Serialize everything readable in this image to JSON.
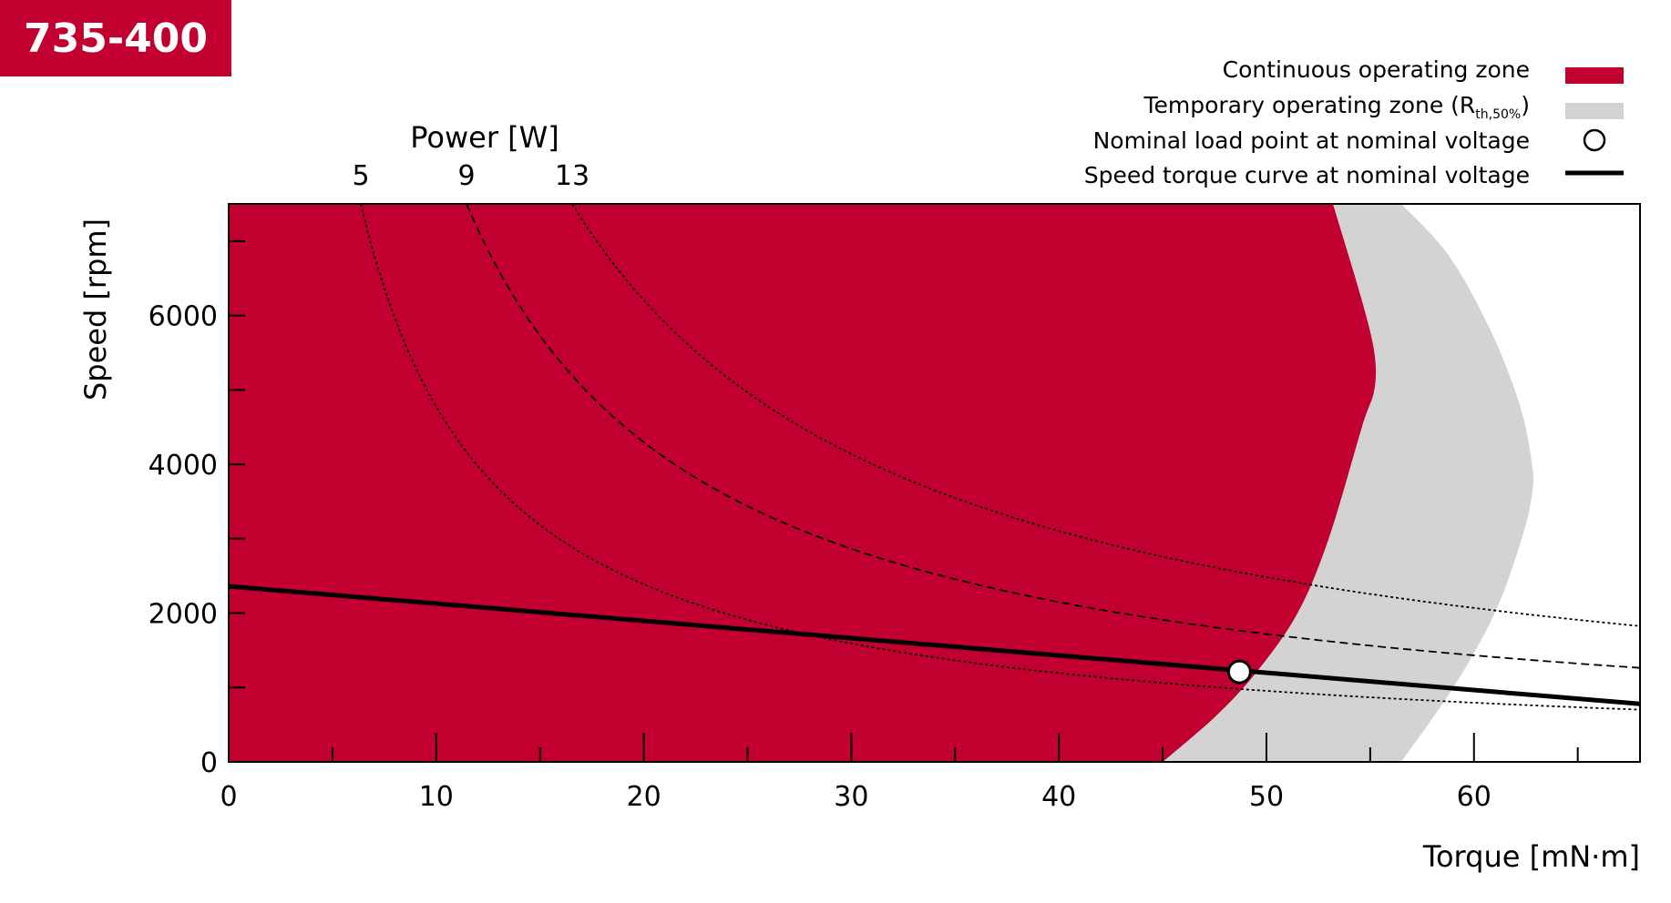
{
  "badge": "735-400",
  "colors": {
    "continuous": "#c20030",
    "temporary": "#d3d3d3",
    "curve": "#000000",
    "badge": "#c20030"
  },
  "legend": {
    "continuous": "Continuous operating zone",
    "temporary_main": "Temporary operating zone (R",
    "temporary_sub": "th,50%",
    "temporary_close": ")",
    "nominal_point": "Nominal load point at nominal voltage",
    "speed_torque": "Speed torque curve at nominal voltage"
  },
  "chart_data": {
    "type": "area",
    "xlabel": "Torque [mN·m]",
    "ylabel": "Speed [rpm]",
    "power_axis_label": "Power [W]",
    "xlim": [
      0,
      68
    ],
    "ylim": [
      0,
      7500
    ],
    "x_ticks": [
      0,
      10,
      20,
      30,
      40,
      50,
      60
    ],
    "x_tick_labels": [
      "0",
      "10",
      "20",
      "30",
      "40",
      "50",
      "60"
    ],
    "x_minor_ticks": [
      5,
      15,
      25,
      35,
      45,
      55,
      65
    ],
    "y_ticks": [
      0,
      2000,
      4000,
      6000
    ],
    "y_tick_labels": [
      "0",
      "2000",
      "4000",
      "6000"
    ],
    "y_minor_ticks": [
      1000,
      3000,
      5000,
      7000
    ],
    "continuous_zone_boundary": [
      [
        45.0,
        0
      ],
      [
        47.5,
        600
      ],
      [
        49.5,
        1200
      ],
      [
        51.5,
        2000
      ],
      [
        53.0,
        3000
      ],
      [
        54.6,
        4500
      ],
      [
        55.2,
        5000
      ],
      [
        55.2,
        5500
      ],
      [
        54.6,
        6200
      ],
      [
        53.2,
        7500
      ]
    ],
    "temporary_zone_boundary": [
      [
        56.5,
        0
      ],
      [
        59.0,
        1000
      ],
      [
        61.0,
        2000
      ],
      [
        62.3,
        3000
      ],
      [
        62.8,
        3600
      ],
      [
        62.8,
        4000
      ],
      [
        62.2,
        4800
      ],
      [
        60.8,
        5800
      ],
      [
        58.8,
        6800
      ],
      [
        56.5,
        7500
      ]
    ],
    "power_curves": [
      {
        "label": "5",
        "power_w": 5,
        "dash": "3,3"
      },
      {
        "label": "9",
        "power_w": 9,
        "dash": "9,5"
      },
      {
        "label": "13",
        "power_w": 13,
        "dash": "3,3"
      }
    ],
    "speed_torque_curve": [
      [
        0,
        2360
      ],
      [
        68,
        780
      ]
    ],
    "nominal_point": {
      "torque": 48.7,
      "speed": 1210
    }
  }
}
